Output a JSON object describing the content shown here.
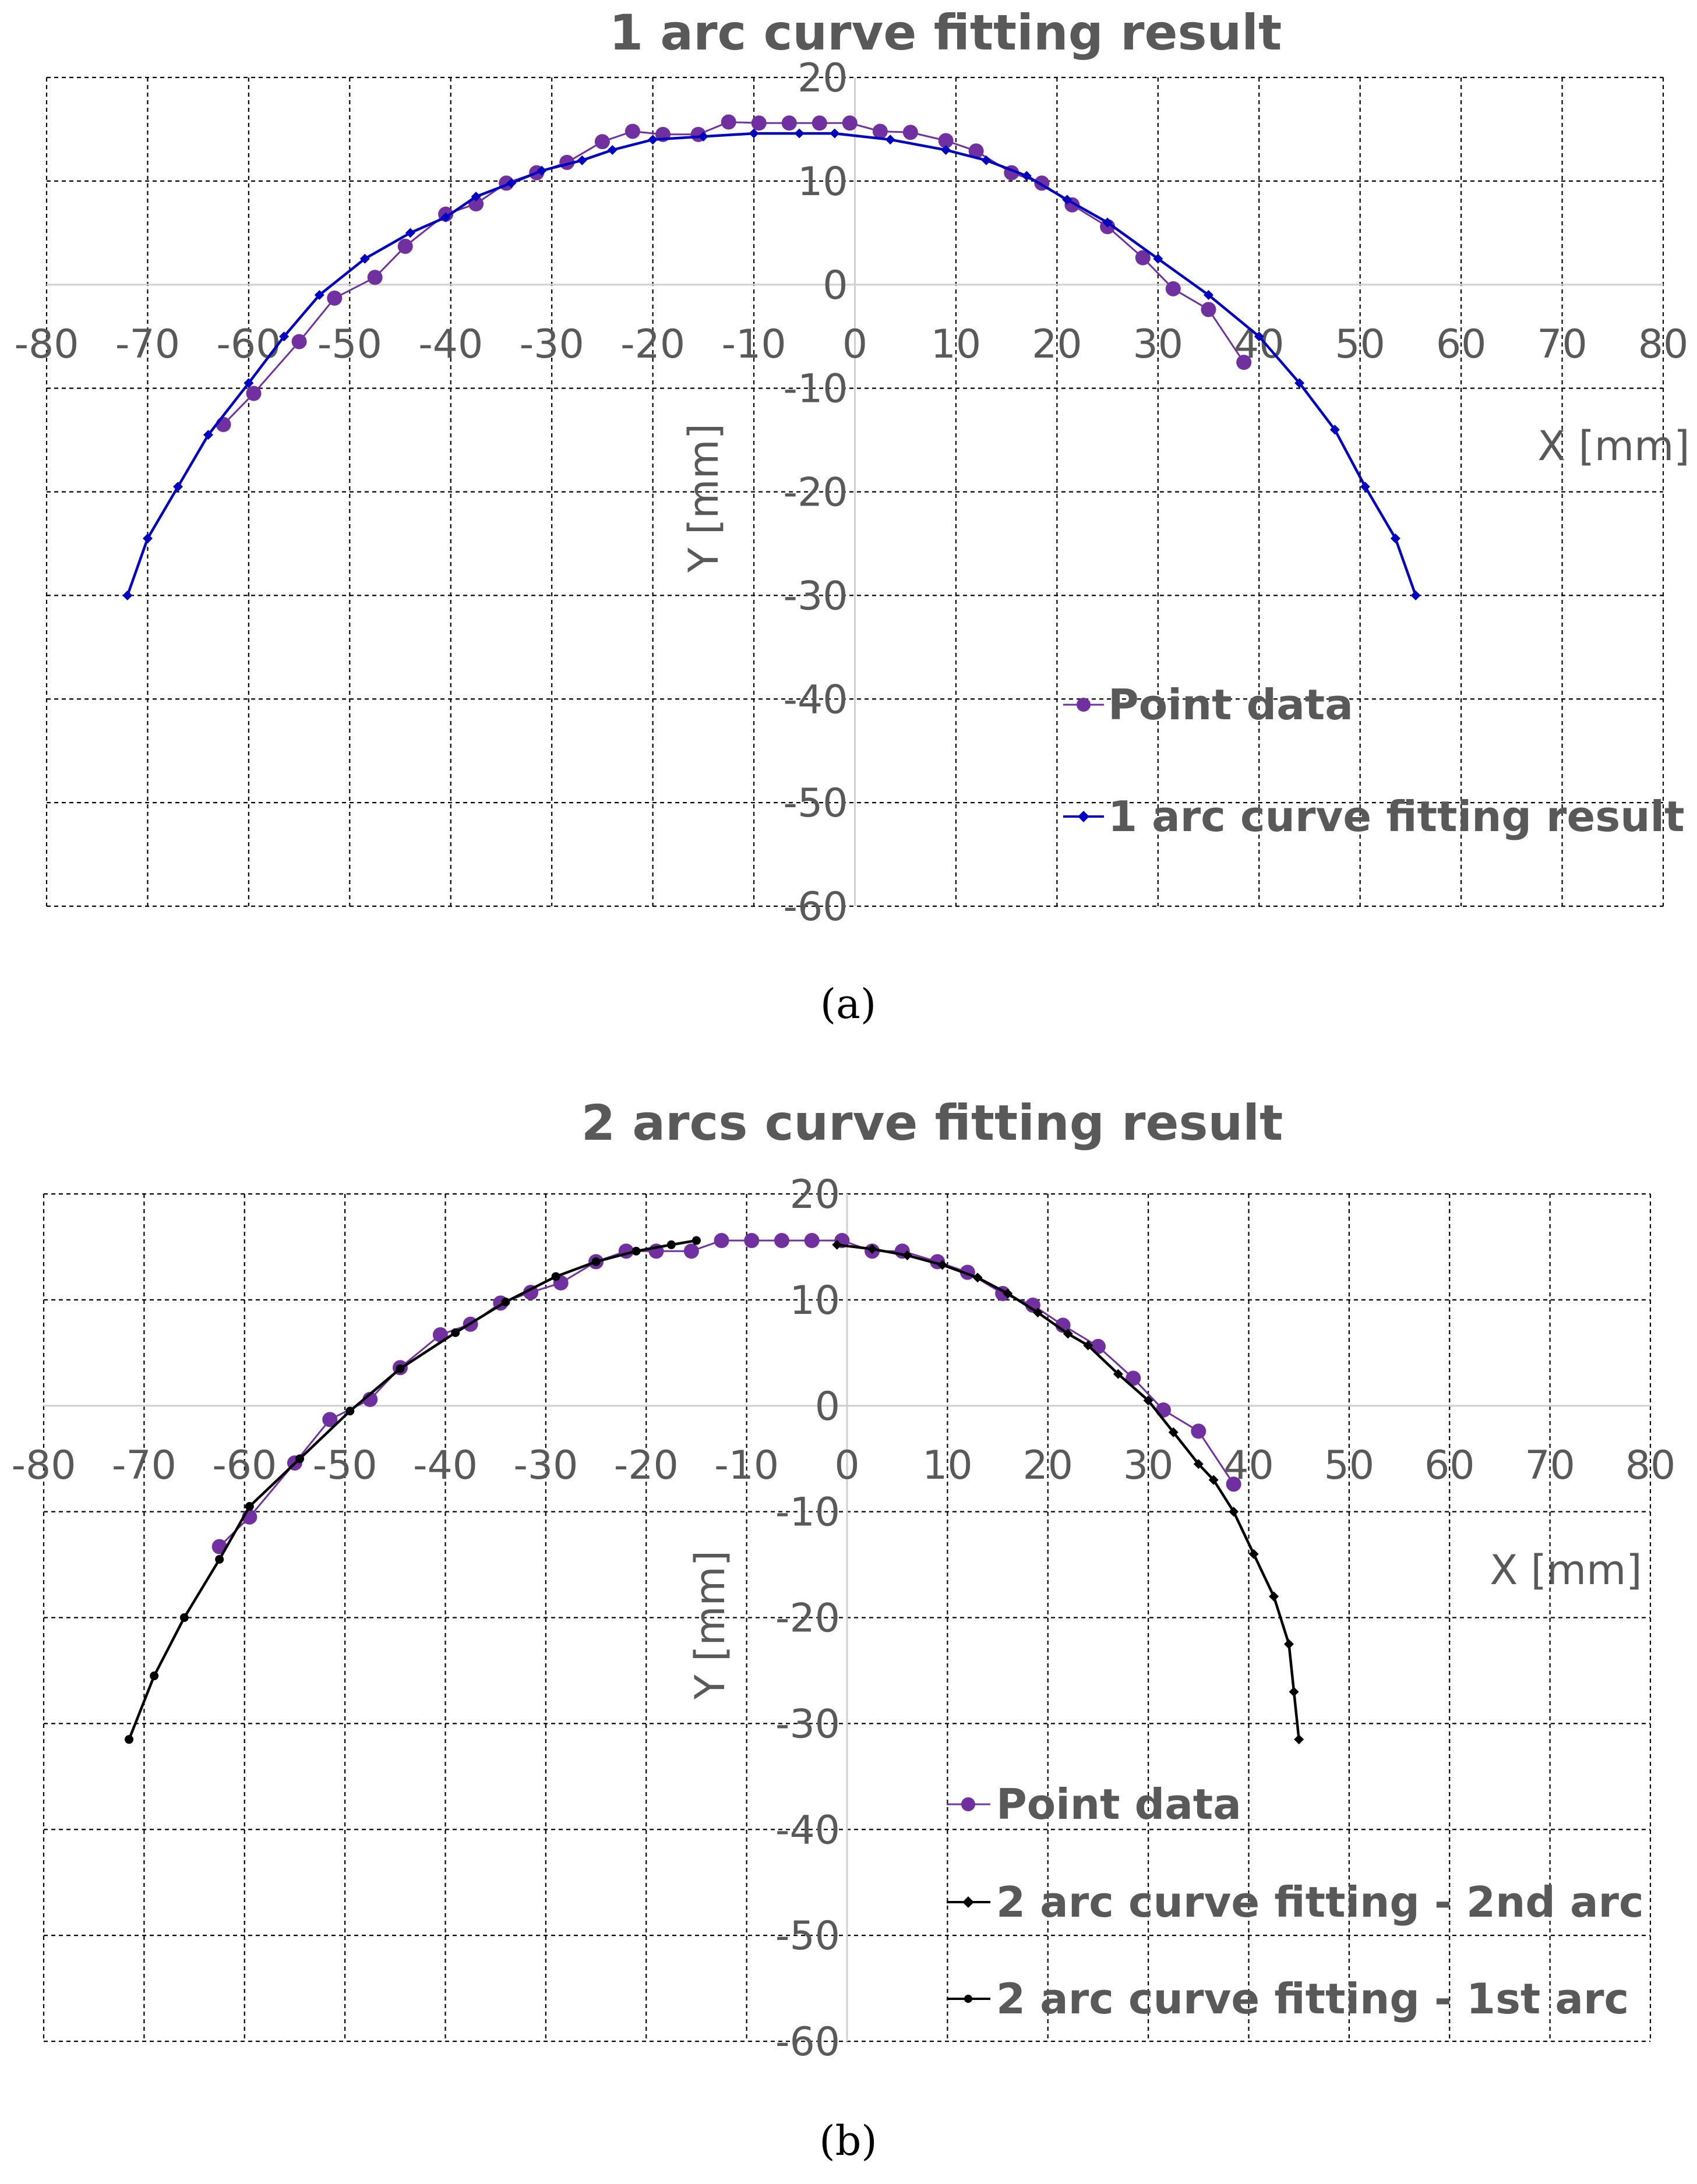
{
  "chart_data": [
    {
      "type": "line",
      "panel_label": "(a)",
      "title": "1 arc curve fitting result",
      "xlabel": "X [mm]",
      "ylabel": "Y [mm]",
      "xlim": [
        -80,
        80
      ],
      "ylim": [
        -60,
        20
      ],
      "xticks": [
        "-80",
        "-70",
        "-60",
        "-50",
        "-40",
        "-30",
        "-20",
        "-10",
        "0",
        "10",
        "20",
        "30",
        "40",
        "50",
        "60",
        "70",
        "80"
      ],
      "yticks": [
        "20",
        "10",
        "0",
        "-10",
        "-20",
        "-30",
        "-40",
        "-50",
        "-60"
      ],
      "grid": true,
      "legend_position": "bottom-right",
      "colors": {
        "point": "#7030a0",
        "fit": "#0000c0"
      },
      "series": [
        {
          "name": "Point data",
          "marker": "circle",
          "x": [
            -62.5,
            -59.5,
            -55,
            -51.5,
            -47.5,
            -44.5,
            -40.5,
            -37.5,
            -34.5,
            -31.5,
            -28.5,
            -25,
            -22,
            -19,
            -15.5,
            -12.5,
            -9.5,
            -6.5,
            -3.5,
            -0.5,
            2.5,
            5.5,
            9,
            12,
            15.5,
            18.5,
            21.5,
            25,
            28.5,
            31.5,
            35,
            38.5
          ],
          "y": [
            -13.5,
            -10.5,
            -5.5,
            -1.3,
            0.7,
            3.7,
            6.8,
            7.8,
            9.8,
            10.8,
            11.8,
            13.8,
            14.8,
            14.5,
            14.5,
            15.7,
            15.6,
            15.6,
            15.6,
            15.6,
            14.8,
            14.7,
            13.9,
            12.9,
            10.8,
            9.8,
            7.7,
            5.6,
            2.6,
            -0.4,
            -2.4,
            -7.5
          ]
        },
        {
          "name": "1 arc curve fitting result",
          "marker": "diamond",
          "x": [
            -72,
            -70,
            -67,
            -64,
            -60,
            -56.5,
            -53,
            -48.5,
            -44,
            -40.5,
            -37.5,
            -34,
            -31,
            -27,
            -24,
            -20,
            -15,
            -10,
            -5.5,
            -2,
            3.5,
            9,
            13,
            17,
            21,
            25,
            30,
            35,
            40,
            44,
            47.5,
            50.5,
            53.5,
            55.5
          ],
          "y": [
            -30,
            -24.5,
            -19.5,
            -14.5,
            -9.5,
            -5,
            -1,
            2.5,
            5,
            6.5,
            8.5,
            9.8,
            11,
            12,
            13,
            14,
            14.3,
            14.6,
            14.6,
            14.6,
            14,
            13,
            12,
            10.5,
            8.2,
            6,
            2.5,
            -1,
            -5,
            -9.5,
            -14,
            -19.5,
            -24.5,
            -30
          ]
        }
      ]
    },
    {
      "type": "line",
      "panel_label": "(b)",
      "title": "2 arcs curve fitting result",
      "xlabel": "X [mm]",
      "ylabel": "Y [mm]",
      "xlim": [
        -80,
        80
      ],
      "ylim": [
        -60,
        20
      ],
      "xticks": [
        "-80",
        "-70",
        "-60",
        "-50",
        "-40",
        "-30",
        "-20",
        "-10",
        "0",
        "10",
        "20",
        "30",
        "40",
        "50",
        "60",
        "70",
        "80"
      ],
      "yticks": [
        "20",
        "10",
        "0",
        "-10",
        "-20",
        "-30",
        "-40",
        "-50",
        "-60"
      ],
      "grid": true,
      "legend_position": "bottom-right",
      "colors": {
        "point": "#7030a0",
        "fit": "#000000"
      },
      "series": [
        {
          "name": "Point data",
          "marker": "circle",
          "x": [
            -62.5,
            -59.5,
            -55,
            -51.5,
            -47.5,
            -44.5,
            -40.5,
            -37.5,
            -34.5,
            -31.5,
            -28.5,
            -25,
            -22,
            -19,
            -15.5,
            -12.5,
            -9.5,
            -6.5,
            -3.5,
            -0.5,
            2.5,
            5.5,
            9,
            12,
            15.5,
            18.5,
            21.5,
            25,
            28.5,
            31.5,
            35,
            38.5
          ],
          "y": [
            -13.3,
            -10.5,
            -5.4,
            -1.3,
            0.6,
            3.6,
            6.7,
            7.7,
            9.7,
            10.7,
            11.6,
            13.6,
            14.6,
            14.6,
            14.6,
            15.6,
            15.6,
            15.6,
            15.6,
            15.6,
            14.6,
            14.6,
            13.6,
            12.6,
            10.6,
            9.5,
            7.6,
            5.6,
            2.6,
            -0.4,
            -2.4,
            -7.4
          ]
        },
        {
          "name": "2 arc curve fitting - 2nd arc",
          "marker": "diamond",
          "x": [
            -1,
            2.5,
            6,
            9.5,
            13,
            16,
            19,
            22,
            24,
            27,
            30,
            32.5,
            35,
            36.5,
            38.5,
            40.5,
            42.5,
            44,
            44.5,
            45
          ],
          "y": [
            15.2,
            14.8,
            14.2,
            13.3,
            12.1,
            10.6,
            8.8,
            6.8,
            5.7,
            3,
            0.5,
            -2.5,
            -5.5,
            -7,
            -10,
            -14,
            -18,
            -22.5,
            -27,
            -31.5
          ]
        },
        {
          "name": "2 arc curve fitting - 1st arc",
          "marker": "circle-small",
          "x": [
            -71.5,
            -69,
            -66,
            -62.5,
            -59.5,
            -54.5,
            -49.5,
            -44.5,
            -39,
            -34,
            -29,
            -25,
            -21,
            -17.5,
            -15
          ],
          "y": [
            -31.5,
            -25.5,
            -20,
            -14.5,
            -9.5,
            -5,
            -0.5,
            3.5,
            6.9,
            9.8,
            12.2,
            13.6,
            14.6,
            15.2,
            15.6
          ]
        }
      ]
    }
  ]
}
